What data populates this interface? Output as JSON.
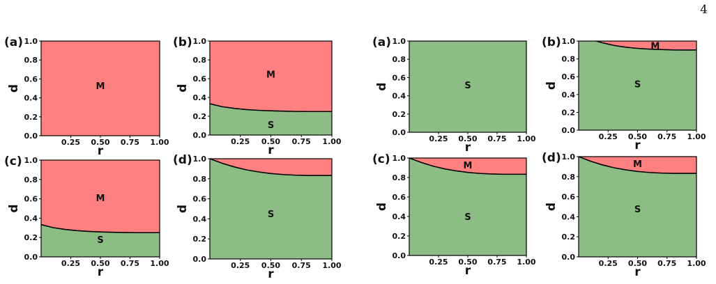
{
  "page_number": "4",
  "colors": {
    "M": "#ff8080",
    "S": "#8bbd85",
    "boundary": "#000000"
  },
  "chart_data": [
    {
      "group": "left",
      "panel": "(a)",
      "type": "area",
      "xlabel": "r",
      "ylabel": "d",
      "xlim": [
        0,
        1
      ],
      "ylim": [
        0,
        1
      ],
      "xticks": [
        "0.25",
        "0.50",
        "0.75",
        "1.00"
      ],
      "yticks": [
        "0.0",
        "0.2",
        "0.4",
        "0.6",
        "0.8",
        "1.0"
      ],
      "boundary": null,
      "regions": [
        "M"
      ],
      "region_labels": [
        {
          "text": "M",
          "x": 0.5,
          "y": 0.53
        }
      ]
    },
    {
      "group": "left",
      "panel": "(b)",
      "type": "area",
      "xlabel": "r",
      "ylabel": "d",
      "xlim": [
        0,
        1
      ],
      "ylim": [
        0,
        1
      ],
      "xticks": [
        "0.25",
        "0.50",
        "0.75",
        "1.00"
      ],
      "yticks": [
        "0.0",
        "0.2",
        "0.4",
        "0.6",
        "0.8",
        "1.0"
      ],
      "boundary": {
        "x": [
          0,
          0.1,
          0.2,
          0.3,
          0.4,
          0.5,
          0.6,
          0.7,
          0.8,
          0.9,
          1.0
        ],
        "y": [
          0.333,
          0.302,
          0.284,
          0.271,
          0.263,
          0.258,
          0.254,
          0.251,
          0.25,
          0.25,
          0.25
        ]
      },
      "regions": [
        "M",
        "S"
      ],
      "region_labels": [
        {
          "text": "M",
          "x": 0.5,
          "y": 0.65
        },
        {
          "text": "S",
          "x": 0.5,
          "y": 0.11
        }
      ]
    },
    {
      "group": "left",
      "panel": "(c)",
      "type": "area",
      "xlabel": "r",
      "ylabel": "d",
      "xlim": [
        0,
        1
      ],
      "ylim": [
        0,
        1
      ],
      "xticks": [
        "0.25",
        "0.50",
        "0.75",
        "1.00"
      ],
      "yticks": [
        "0.0",
        "0.2",
        "0.4",
        "0.6",
        "0.8",
        "1.0"
      ],
      "boundary": {
        "x": [
          0,
          0.1,
          0.2,
          0.3,
          0.4,
          0.5,
          0.6,
          0.7,
          0.8,
          0.9,
          1.0
        ],
        "y": [
          0.333,
          0.302,
          0.284,
          0.271,
          0.263,
          0.258,
          0.254,
          0.251,
          0.25,
          0.25,
          0.25
        ]
      },
      "regions": [
        "M",
        "S"
      ],
      "region_labels": [
        {
          "text": "M",
          "x": 0.5,
          "y": 0.61
        },
        {
          "text": "S",
          "x": 0.5,
          "y": 0.18
        }
      ]
    },
    {
      "group": "left",
      "panel": "(d)",
      "type": "area",
      "xlabel": "r",
      "ylabel": "d",
      "xlim": [
        0,
        1
      ],
      "ylim": [
        0,
        1
      ],
      "xticks": [
        "0.25",
        "0.50",
        "0.75",
        "1.00"
      ],
      "yticks": [
        "0.0",
        "0.2",
        "0.4",
        "0.6",
        "0.8",
        "1.0"
      ],
      "boundary": {
        "x": [
          0,
          0.1,
          0.2,
          0.3,
          0.4,
          0.5,
          0.6,
          0.7,
          0.8,
          0.9,
          1.0
        ],
        "y": [
          1.0,
          0.955,
          0.918,
          0.889,
          0.868,
          0.852,
          0.842,
          0.836,
          0.833,
          0.833,
          0.833
        ]
      },
      "regions": [
        "M",
        "S"
      ],
      "region_labels": [
        {
          "text": "S",
          "x": 0.5,
          "y": 0.45
        }
      ]
    },
    {
      "group": "right",
      "panel": "(a)",
      "type": "area",
      "xlabel": "r",
      "ylabel": "d",
      "xlim": [
        0,
        1
      ],
      "ylim": [
        0,
        1
      ],
      "xticks": [
        "0.25",
        "0.50",
        "0.75",
        "1.00"
      ],
      "yticks": [
        "0.0",
        "0.2",
        "0.4",
        "0.6",
        "0.8",
        "1.0"
      ],
      "boundary": null,
      "regions": [
        "S"
      ],
      "region_labels": [
        {
          "text": "S",
          "x": 0.5,
          "y": 0.52
        }
      ]
    },
    {
      "group": "right",
      "panel": "(b)",
      "type": "area",
      "xlabel": "r",
      "ylabel": "d",
      "xlim": [
        0,
        1
      ],
      "ylim": [
        0,
        1
      ],
      "xticks": [
        "0.25",
        "0.50",
        "0.75",
        "1.00"
      ],
      "yticks": [
        "0.0",
        "0.2",
        "0.4",
        "0.6",
        "0.8",
        "1.0"
      ],
      "boundary": {
        "x": [
          0.15,
          0.2,
          0.3,
          0.4,
          0.5,
          0.6,
          0.7,
          0.8,
          0.9,
          1.0
        ],
        "y": [
          1.0,
          0.981,
          0.951,
          0.931,
          0.918,
          0.91,
          0.905,
          0.901,
          0.9,
          0.9
        ]
      },
      "regions": [
        "M",
        "S"
      ],
      "region_labels": [
        {
          "text": "M",
          "x": 0.65,
          "y": 0.95
        },
        {
          "text": "S",
          "x": 0.5,
          "y": 0.52
        }
      ]
    },
    {
      "group": "right",
      "panel": "(c)",
      "type": "area",
      "xlabel": "r",
      "ylabel": "d",
      "xlim": [
        0,
        1
      ],
      "ylim": [
        0,
        1
      ],
      "xticks": [
        "0.25",
        "0.50",
        "0.75",
        "1.00"
      ],
      "yticks": [
        "0.0",
        "0.2",
        "0.4",
        "0.6",
        "0.8",
        "1.0"
      ],
      "boundary": {
        "x": [
          0,
          0.1,
          0.2,
          0.3,
          0.4,
          0.5,
          0.6,
          0.7,
          0.8,
          0.9,
          1.0
        ],
        "y": [
          1.0,
          0.955,
          0.918,
          0.889,
          0.868,
          0.852,
          0.842,
          0.836,
          0.833,
          0.833,
          0.833
        ]
      },
      "regions": [
        "M",
        "S"
      ],
      "region_labels": [
        {
          "text": "M",
          "x": 0.5,
          "y": 0.93
        },
        {
          "text": "S",
          "x": 0.5,
          "y": 0.4
        }
      ]
    },
    {
      "group": "right",
      "panel": "(d)",
      "type": "area",
      "xlabel": "r",
      "ylabel": "d",
      "xlim": [
        0,
        1
      ],
      "ylim": [
        0,
        1
      ],
      "xticks": [
        "0.25",
        "0.50",
        "0.75",
        "1.00"
      ],
      "yticks": [
        "0.0",
        "0.2",
        "0.4",
        "0.6",
        "0.8",
        "1.0"
      ],
      "boundary": {
        "x": [
          0,
          0.1,
          0.2,
          0.3,
          0.4,
          0.5,
          0.6,
          0.7,
          0.8,
          0.9,
          1.0
        ],
        "y": [
          1.0,
          0.955,
          0.918,
          0.889,
          0.868,
          0.852,
          0.842,
          0.836,
          0.833,
          0.833,
          0.833
        ]
      },
      "regions": [
        "M",
        "S"
      ],
      "region_labels": [
        {
          "text": "M",
          "x": 0.5,
          "y": 0.93
        },
        {
          "text": "S",
          "x": 0.5,
          "y": 0.48
        }
      ]
    }
  ]
}
